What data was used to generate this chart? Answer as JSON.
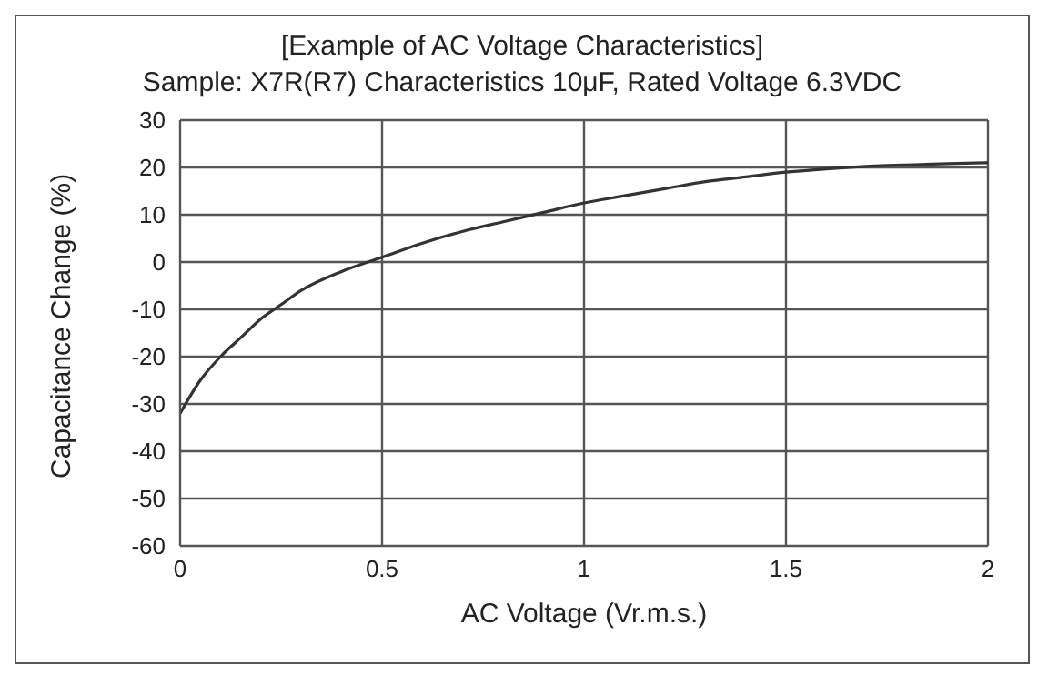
{
  "chart_data": {
    "type": "line",
    "title": "[Example of AC Voltage Characteristics]",
    "subtitle": "Sample: X7R(R7) Characteristics 10μF, Rated Voltage 6.3VDC",
    "xlabel": "AC Voltage (Vr.m.s.)",
    "ylabel": "Capacitance Change (%)",
    "x": [
      0,
      0.05,
      0.1,
      0.15,
      0.2,
      0.25,
      0.3,
      0.4,
      0.5,
      0.6,
      0.7,
      0.8,
      0.9,
      1.0,
      1.1,
      1.2,
      1.3,
      1.4,
      1.5,
      1.6,
      1.75,
      1.9,
      2.0
    ],
    "series": [
      {
        "color": "#333333",
        "values": [
          -32,
          -25,
          -20,
          -16,
          -12,
          -9,
          -6,
          -2,
          1,
          4,
          6.5,
          8.5,
          10.5,
          12.5,
          14,
          15.5,
          17,
          18,
          19,
          19.7,
          20.4,
          20.8,
          21
        ]
      }
    ],
    "xlim": [
      0,
      2
    ],
    "xticks": [
      0,
      0.5,
      1,
      1.5,
      2
    ],
    "ylim": [
      -60,
      30
    ],
    "yticks": [
      -60,
      -50,
      -40,
      -30,
      -20,
      -10,
      0,
      10,
      20,
      30
    ],
    "grid": true,
    "legend": false,
    "marker": "none",
    "line_style": "solid"
  }
}
